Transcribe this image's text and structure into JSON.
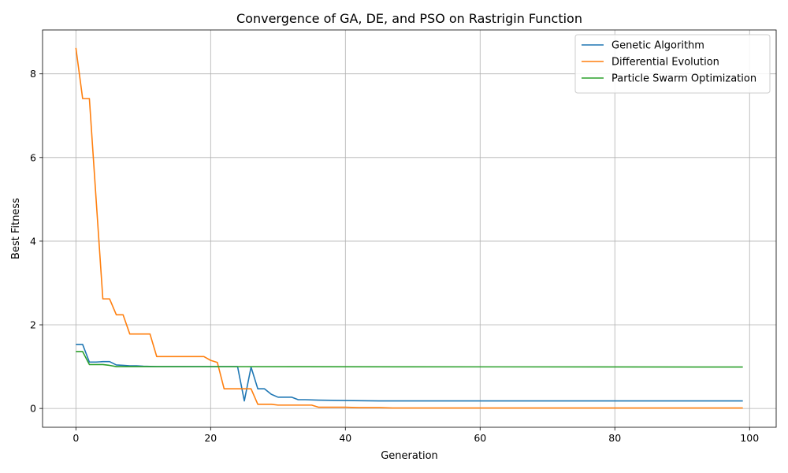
{
  "chart_data": {
    "type": "line",
    "title": "Convergence of GA, DE, and PSO on Rastrigin Function",
    "xlabel": "Generation",
    "ylabel": "Best Fitness",
    "xlim": [
      -4.95,
      103.95
    ],
    "ylim": [
      -0.45,
      9.05
    ],
    "xticks": [
      0,
      20,
      40,
      60,
      80,
      100
    ],
    "yticks": [
      0,
      2,
      4,
      6,
      8
    ],
    "grid": true,
    "legend_position": "top-right",
    "series": [
      {
        "name": "Genetic Algorithm",
        "color": "#1f77b4",
        "points": [
          [
            0,
            1.53
          ],
          [
            1,
            1.53
          ],
          [
            2,
            1.11
          ],
          [
            3,
            1.11
          ],
          [
            4,
            1.12
          ],
          [
            5,
            1.12
          ],
          [
            6,
            1.04
          ],
          [
            7,
            1.03
          ],
          [
            8,
            1.02
          ],
          [
            9,
            1.02
          ],
          [
            10,
            1.01
          ],
          [
            12,
            1.0
          ],
          [
            15,
            1.0
          ],
          [
            20,
            1.0
          ],
          [
            24,
            1.0
          ],
          [
            25,
            0.18
          ],
          [
            26,
            0.99
          ],
          [
            27,
            0.47
          ],
          [
            28,
            0.47
          ],
          [
            29,
            0.34
          ],
          [
            30,
            0.27
          ],
          [
            31,
            0.27
          ],
          [
            32,
            0.27
          ],
          [
            33,
            0.21
          ],
          [
            34,
            0.21
          ],
          [
            36,
            0.2
          ],
          [
            40,
            0.19
          ],
          [
            45,
            0.18
          ],
          [
            99,
            0.18
          ]
        ]
      },
      {
        "name": "Differential Evolution",
        "color": "#ff7f0e",
        "points": [
          [
            0,
            8.62
          ],
          [
            1,
            7.41
          ],
          [
            2,
            7.41
          ],
          [
            3,
            5.0
          ],
          [
            4,
            2.62
          ],
          [
            5,
            2.62
          ],
          [
            6,
            2.24
          ],
          [
            7,
            2.24
          ],
          [
            8,
            1.78
          ],
          [
            9,
            1.78
          ],
          [
            10,
            1.78
          ],
          [
            11,
            1.78
          ],
          [
            12,
            1.24
          ],
          [
            13,
            1.24
          ],
          [
            19,
            1.24
          ],
          [
            20,
            1.15
          ],
          [
            21,
            1.1
          ],
          [
            22,
            0.47
          ],
          [
            23,
            0.47
          ],
          [
            25,
            0.47
          ],
          [
            26,
            0.47
          ],
          [
            27,
            0.1
          ],
          [
            28,
            0.1
          ],
          [
            29,
            0.1
          ],
          [
            30,
            0.08
          ],
          [
            35,
            0.08
          ],
          [
            36,
            0.03
          ],
          [
            40,
            0.03
          ],
          [
            42,
            0.02
          ],
          [
            45,
            0.02
          ],
          [
            47,
            0.01
          ],
          [
            99,
            0.01
          ]
        ]
      },
      {
        "name": "Particle Swarm Optimization",
        "color": "#2ca02c",
        "points": [
          [
            0,
            1.36
          ],
          [
            1,
            1.36
          ],
          [
            2,
            1.05
          ],
          [
            3,
            1.05
          ],
          [
            4,
            1.05
          ],
          [
            5,
            1.03
          ],
          [
            6,
            1.0
          ],
          [
            10,
            1.0
          ],
          [
            99,
            0.99
          ]
        ]
      }
    ]
  }
}
